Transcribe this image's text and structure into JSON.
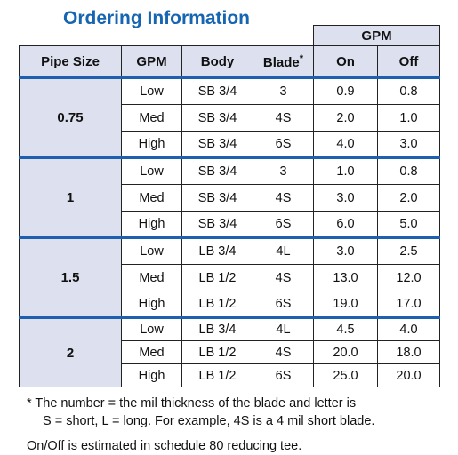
{
  "title": "Ordering Information",
  "table": {
    "gpm_group": "GPM",
    "headers": {
      "pipe_size": "Pipe Size",
      "gpm": "GPM",
      "body": "Body",
      "blade": "Blade",
      "blade_mark": "*",
      "on": "On",
      "off": "Off"
    },
    "groups": [
      {
        "pipe": "0.75",
        "rows": [
          {
            "gpm": "Low",
            "body": "SB 3/4",
            "blade": "3",
            "on": "0.9",
            "off": "0.8"
          },
          {
            "gpm": "Med",
            "body": "SB 3/4",
            "blade": "4S",
            "on": "2.0",
            "off": "1.0"
          },
          {
            "gpm": "High",
            "body": "SB 3/4",
            "blade": "6S",
            "on": "4.0",
            "off": "3.0"
          }
        ]
      },
      {
        "pipe": "1",
        "rows": [
          {
            "gpm": "Low",
            "body": "SB 3/4",
            "blade": "3",
            "on": "1.0",
            "off": "0.8"
          },
          {
            "gpm": "Med",
            "body": "SB 3/4",
            "blade": "4S",
            "on": "3.0",
            "off": "2.0"
          },
          {
            "gpm": "High",
            "body": "SB 3/4",
            "blade": "6S",
            "on": "6.0",
            "off": "5.0"
          }
        ]
      },
      {
        "pipe": "1.5",
        "rows": [
          {
            "gpm": "Low",
            "body": "LB 3/4",
            "blade": "4L",
            "on": "3.0",
            "off": "2.5"
          },
          {
            "gpm": "Med",
            "body": "LB 1/2",
            "blade": "4S",
            "on": "13.0",
            "off": "12.0"
          },
          {
            "gpm": "High",
            "body": "LB 1/2",
            "blade": "6S",
            "on": "19.0",
            "off": "17.0"
          }
        ]
      },
      {
        "pipe": "2",
        "rows": [
          {
            "gpm": "Low",
            "body": "LB 3/4",
            "blade": "4L",
            "on": "4.5",
            "off": "4.0"
          },
          {
            "gpm": "Med",
            "body": "LB 1/2",
            "blade": "4S",
            "on": "20.0",
            "off": "18.0"
          },
          {
            "gpm": "High",
            "body": "LB 1/2",
            "blade": "6S",
            "on": "25.0",
            "off": "20.0"
          }
        ]
      }
    ]
  },
  "notes": {
    "line1": "* The number = the mil thickness of the blade and letter is",
    "line2": "S = short, L = long. For example, 4S is a 4 mil short blade.",
    "line3": "On/Off is estimated in schedule 80 reducing tee."
  },
  "colors": {
    "title": "#1565b3",
    "header_bg": "#dde0ef",
    "group_rule": "#1f5fb0"
  }
}
